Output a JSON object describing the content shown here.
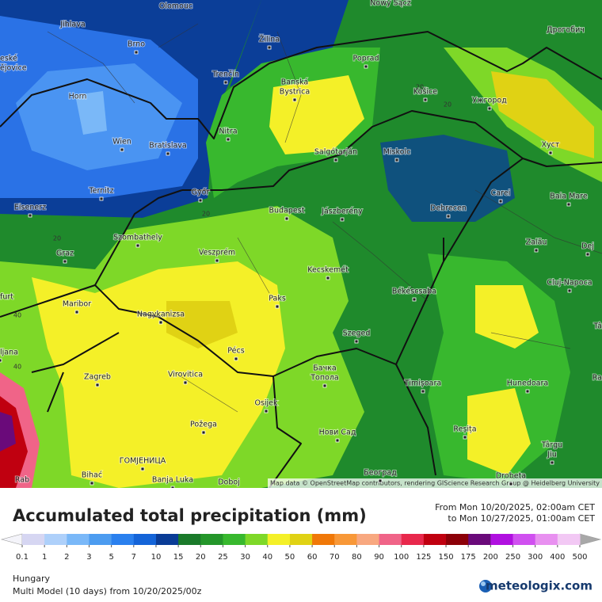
{
  "map": {
    "attribution": "Map data © OpenStreetMap contributors, rendering GIScience Research Group @ Heidelberg University",
    "places": [
      "Olomouc",
      "Nowy Sącz",
      "Jihlava",
      "Brno",
      "Žilina",
      "Poprad",
      "Дрогобич",
      "eské",
      "ějovice",
      "Trenčín",
      "Banská",
      "Bystrica",
      "Košice",
      "Ужгород",
      "Horn",
      "Nitra",
      "Wien",
      "Bratislava",
      "Salgótarján",
      "Miskolc",
      "Хуст",
      "Ternitz",
      "Győr",
      "Carei",
      "Baia Mare",
      "Eisenerz",
      "Budapest",
      "Jászberény",
      "Debrecen",
      "Szombathely",
      "Zalău",
      "Graz",
      "Veszprém",
      "Dej",
      "Kecskemét",
      "Cluj-Napoca",
      "furt",
      "Maribor",
      "Békéscsaba",
      "Paks",
      "Nagykanizsa",
      "Tâ",
      "ljana",
      "Pécs",
      "Szeged",
      "Бачка",
      "Топола",
      "Zagreb",
      "Virovitica",
      "Timișoara",
      "Hunedoara",
      "Ra",
      "Osijek",
      "Požega",
      "Reșița",
      "Нови Сад",
      "Târgu",
      "Jiu",
      "ГОМЈЕНИЦА",
      "Bihać",
      "Banja Luka",
      "Doboj",
      "Београд",
      "Drobeta",
      "Rab"
    ],
    "contour_labels": [
      "20",
      "20",
      "20",
      "20",
      "40",
      "40"
    ]
  },
  "legend": {
    "title": "Accumulated total precipitation (mm)",
    "period_from": "From Mon 10/20/2025, 02:00am CET",
    "period_to": "to Mon 10/27/2025, 01:00am CET",
    "ticks": [
      0.1,
      1,
      2,
      3,
      5,
      7,
      10,
      15,
      20,
      25,
      30,
      40,
      50,
      60,
      70,
      80,
      90,
      100,
      125,
      150,
      175,
      200,
      250,
      300,
      400,
      500
    ],
    "under_color": "#f4f4fa",
    "colors": [
      "#d6d6f2",
      "#aed0fa",
      "#7ab8f8",
      "#4c9cf0",
      "#2a80ee",
      "#1464d8",
      "#0a3c96",
      "#1a7a2a",
      "#24962a",
      "#38b82e",
      "#7ed828",
      "#f4f028",
      "#e0d214",
      "#f07808",
      "#f89838",
      "#f8a880",
      "#f06488",
      "#e8284c",
      "#c00010",
      "#8c0008",
      "#6a0a7a",
      "#b010e0",
      "#d050f0",
      "#e890f0",
      "#f2c8f4"
    ],
    "over_color": "#a8a8a8"
  },
  "footer": {
    "region": "Hungary",
    "model": "Multi Model (10 days) from 10/20/2025/00z",
    "brand": "meteologix.com"
  }
}
